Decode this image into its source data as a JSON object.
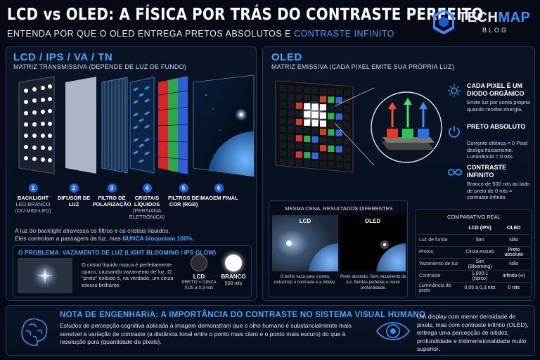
{
  "header": {
    "title": "LCD vs OLED: A FÍSICA POR TRÁS DO CONTRASTE PERFEITO",
    "subtitle_main": "ENTENDA POR QUE O OLED ENTREGA PRETOS ABSOLUTOS E ",
    "subtitle_highlight": "CONTRASTE INFINITO",
    "logo_tech": "TECH",
    "logo_map": "MAP",
    "logo_blog": "BLOG"
  },
  "lcd": {
    "title": "LCD / IPS / VA / TN",
    "subtitle": "MATRIZ TRANSMISSIVA (DEPENDE DE LUZ DE FUNDO)",
    "steps": [
      {
        "n": "1",
        "label": "BACKLIGHT",
        "sub": "LED BRANCO (OU MINI-LED)"
      },
      {
        "n": "2",
        "label": "DIFUSOR DE LUZ",
        "sub": ""
      },
      {
        "n": "3",
        "label": "FILTRO DE POLARIZAÇÃO",
        "sub": ""
      },
      {
        "n": "4",
        "label": "CRISTAIS LÍQUIDOS",
        "sub": "(PERSIANA ELETRÔNICA)"
      },
      {
        "n": "5",
        "label": "FILTROS DE COR (RGB)",
        "sub": ""
      },
      {
        "n": "6",
        "label": "IMAGEM FINAL",
        "sub": ""
      }
    ],
    "desc_line1": "A luz do backlight atravessa os filtros e os cristais líquidos.",
    "desc_line2_pre": "Eles controlam a passagem da luz, mas ",
    "desc_line2_hl": "NUNCA bloqueiam 100%.",
    "problem_title": "O PROBLEMA: VAZAMENTO DE LUZ (LIGHT BLOOMING / IPS GLOW)",
    "problem_text": "O cristal líquido nunca é perfeitamente opaco, causando vazamento de luz. O \"preto\" exibido é, na verdade, um cinza escuro brilhante.",
    "lcd_label": "LCD",
    "lcd_value": "PRETO = CINZA 0,05 a 0,3 nits",
    "white_label": "BRANCO",
    "white_value": "500 nits"
  },
  "oled": {
    "title": "OLED",
    "subtitle": "MATRIZ EMISSIVA (CADA PIXEL EMITE SUA PRÓPRIA LUZ)",
    "features": [
      {
        "icon": "sun-icon",
        "head": "CADA PIXEL É UM DIODO ORGÂNICO",
        "text": "Emite luz por conta própria quando recebe energia."
      },
      {
        "icon": "power-icon",
        "head": "PRETO ABSOLUTO",
        "text": "Corrente elétrica = 0 Pixel desliga fisicamente. Luminância = 0 nits"
      },
      {
        "icon": "infinity-icon",
        "head": "CONTRASTE INFINITO",
        "text": "Branco de 500 nits ao lado de preto de 0 nits = contraste infinito."
      }
    ],
    "compare_title": "MESMA CENA, RESULTADOS DIFERENTES",
    "compare_lcd": "LCD",
    "compare_oled": "OLED",
    "compare_lcd_caption": "O brilho vaza para o preto, reduzindo o contraste e a nitidez.",
    "compare_oled_caption": "Preto absoluto. Sem vazamento de luz. Bordas perfeitas e maior profundidade."
  },
  "table": {
    "title": "COMPARATIVO REAL",
    "headers": [
      "",
      "LCD (IPS)",
      "OLED"
    ],
    "rows": [
      [
        "Luz de fundo",
        "Sim",
        "Não"
      ],
      [
        "Pretos",
        "Cinza escuro",
        "Preto absoluto"
      ],
      [
        "Vazamento de luz",
        "Sim (Blooming)",
        "Não"
      ],
      [
        "Contraste",
        "1.000:1 (típico)",
        "Infinito (∞)"
      ],
      [
        "Luminância do preto",
        "0,05 a 0,3 nits",
        "0 nits"
      ]
    ]
  },
  "footer": {
    "title": "NOTA DE ENGENHARIA: A IMPORTÂNCIA DO CONTRASTE NO SISTEMA VISUAL HUMANO",
    "text": "Estudos de percepção cognitiva aplicada à imagem demonstram que o olho humano é substancialmente mais sensível à variação de contraste (a distância tonal entre o ponto mais claro e o ponto mais escuro) do que à resolução pura (quantidade de pixels).",
    "right_text": "Um display com menor densidade de pixels, mas com contraste infinito (OLED), entrega uma percepção de nitidez, profundidade e tridimensionalidade muito superior."
  },
  "colors": {
    "accent": "#45a6ff",
    "highlight": "#3aa0ff",
    "bg": "#050a14"
  }
}
